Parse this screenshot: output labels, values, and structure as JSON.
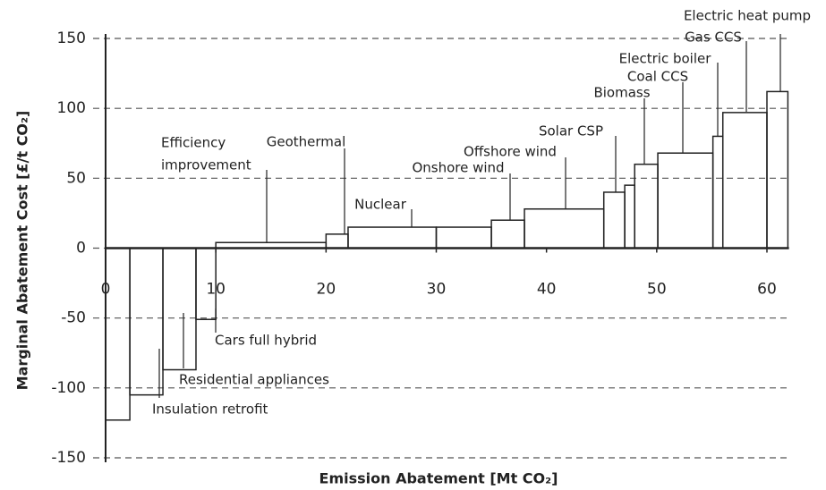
{
  "chart_data": {
    "type": "mac",
    "y_label": "Marginal Abatement Cost [£/t CO₂]",
    "x_label": "Emission Abatement [Mt CO₂]",
    "xlim": [
      0,
      62
    ],
    "ylim": [
      -150,
      150
    ],
    "xticks": [
      0,
      10,
      20,
      30,
      40,
      50,
      60
    ],
    "yticks": [
      -150,
      -100,
      -50,
      0,
      50,
      100,
      150
    ],
    "grid": true,
    "color": "#222222",
    "bars": [
      {
        "x": [
          0,
          2.2
        ],
        "value": -123
      },
      {
        "x": [
          2.2,
          5.2
        ],
        "value": -105
      },
      {
        "x": [
          5.2,
          8.2
        ],
        "value": -87
      },
      {
        "x": [
          8.2,
          10
        ],
        "value": -51
      },
      {
        "x": [
          10,
          20
        ],
        "value": 4
      },
      {
        "x": [
          20,
          22
        ],
        "value": 10
      },
      {
        "x": [
          22,
          30
        ],
        "value": 15
      },
      {
        "x": [
          30,
          35
        ],
        "value": 15
      },
      {
        "x": [
          35,
          38
        ],
        "value": 20
      },
      {
        "x": [
          38,
          45.2
        ],
        "value": 28
      },
      {
        "x": [
          45.2,
          47.1
        ],
        "value": 40
      },
      {
        "x": [
          47.1,
          48
        ],
        "value": 45
      },
      {
        "x": [
          48,
          50.1
        ],
        "value": 60
      },
      {
        "x": [
          50.1,
          55.1
        ],
        "value": 68
      },
      {
        "x": [
          55.1,
          56
        ],
        "value": 80
      },
      {
        "x": [
          56,
          60
        ],
        "value": 97
      },
      {
        "x": [
          60,
          61.9
        ],
        "value": 112
      }
    ],
    "annotations": [
      "Electric heat pump",
      "Gas CCS",
      "Electric boiler",
      "Coal CCS",
      "Biomass",
      "Solar CSP",
      "Offshore wind",
      "Onshore wind",
      "Nuclear",
      "Geothermal",
      "Efficiency",
      "improvement",
      "Cars full hybrid",
      "Residential appliances",
      "Insulation retrofit"
    ]
  }
}
